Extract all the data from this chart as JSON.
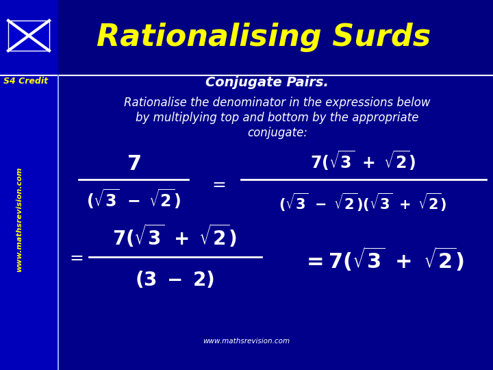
{
  "bg_color": "#00008B",
  "header_color": "#000080",
  "sidebar_color": "#0000AA",
  "title": "Rationalising Surds",
  "title_color": "#ffff00",
  "subtitle": "Conjugate Pairs.",
  "subtitle_color": "#ffffff",
  "s4_credit": "S4 Credit",
  "s4_credit_color": "#ffff00",
  "watermark_side": "www.mathsrevision.com",
  "watermark_bottom": "www.mathsrevision.com",
  "watermark_color": "#ffff00",
  "instruction_color": "#ffffff",
  "math_color": "#ffffff",
  "separator_color": "#ffffff",
  "sidebar_line_color": "#aaaaff",
  "figw": 7.2,
  "figh": 5.4,
  "dpi": 100
}
